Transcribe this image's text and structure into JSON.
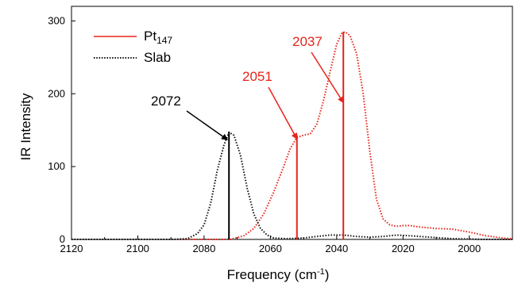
{
  "chart_data": {
    "type": "line",
    "title": "",
    "xlabel": "Frequency (cm",
    "xlabel_sup": "-1",
    "xlabel_close": ")",
    "ylabel": "IR Intensity",
    "xlim": [
      2120,
      1987
    ],
    "ylim": [
      0,
      320
    ],
    "x_reversed": true,
    "xticks": [
      2120,
      2100,
      2080,
      2060,
      2040,
      2020,
      2000
    ],
    "yticks": [
      0,
      100,
      200,
      300
    ],
    "grid": false,
    "legend_position": "top-left",
    "series": [
      {
        "name": "Pt",
        "name_sub": "147",
        "color": "#e8231a",
        "style": "dotted",
        "points": [
          [
            2120,
            0
          ],
          [
            2080,
            0
          ],
          [
            2072,
            0
          ],
          [
            2068,
            5
          ],
          [
            2065,
            15
          ],
          [
            2062,
            35
          ],
          [
            2059,
            65
          ],
          [
            2056,
            100
          ],
          [
            2054,
            125
          ],
          [
            2052,
            140
          ],
          [
            2050,
            143
          ],
          [
            2048,
            145
          ],
          [
            2046,
            158
          ],
          [
            2044,
            190
          ],
          [
            2042,
            230
          ],
          [
            2040,
            268
          ],
          [
            2038.5,
            283
          ],
          [
            2037.5,
            285
          ],
          [
            2036,
            280
          ],
          [
            2034,
            255
          ],
          [
            2032,
            200
          ],
          [
            2030,
            120
          ],
          [
            2028,
            55
          ],
          [
            2026,
            28
          ],
          [
            2024,
            20
          ],
          [
            2022,
            18
          ],
          [
            2020,
            19
          ],
          [
            2018,
            19
          ],
          [
            2015,
            17
          ],
          [
            2010,
            15
          ],
          [
            2005,
            14
          ],
          [
            2000,
            10
          ],
          [
            1995,
            5
          ],
          [
            1990,
            2
          ],
          [
            1987,
            1
          ]
        ]
      },
      {
        "name": "Slab",
        "color": "#111111",
        "style": "dotted",
        "points": [
          [
            2120,
            0
          ],
          [
            2090,
            0
          ],
          [
            2085,
            1
          ],
          [
            2082,
            8
          ],
          [
            2080,
            20
          ],
          [
            2078,
            50
          ],
          [
            2076,
            95
          ],
          [
            2074,
            130
          ],
          [
            2072.5,
            147
          ],
          [
            2071,
            143
          ],
          [
            2069,
            115
          ],
          [
            2067,
            70
          ],
          [
            2065,
            35
          ],
          [
            2063,
            15
          ],
          [
            2061,
            6
          ],
          [
            2059,
            2
          ],
          [
            2055,
            1
          ],
          [
            2050,
            2
          ],
          [
            2046,
            4
          ],
          [
            2042,
            6
          ],
          [
            2038,
            6
          ],
          [
            2034,
            4
          ],
          [
            2030,
            3
          ],
          [
            2026,
            4
          ],
          [
            2022,
            6
          ],
          [
            2018,
            5
          ],
          [
            2012,
            3
          ],
          [
            2005,
            1
          ],
          [
            1995,
            0
          ],
          [
            1987,
            0
          ]
        ]
      }
    ],
    "stick_lines": [
      {
        "x": 2072.5,
        "y": 148,
        "color": "#000000"
      },
      {
        "x": 2052,
        "y": 143,
        "color": "#e8231a"
      },
      {
        "x": 2038,
        "y": 285,
        "color": "#e8231a"
      }
    ],
    "annotations": [
      {
        "text": "2072",
        "color": "#000000",
        "arrow_to": [
          2073,
          137
        ]
      },
      {
        "text": "2051",
        "color": "#e8231a",
        "arrow_to": [
          2052,
          138
        ]
      },
      {
        "text": "2037",
        "color": "#e8231a",
        "arrow_to": [
          2038,
          188
        ]
      }
    ]
  }
}
